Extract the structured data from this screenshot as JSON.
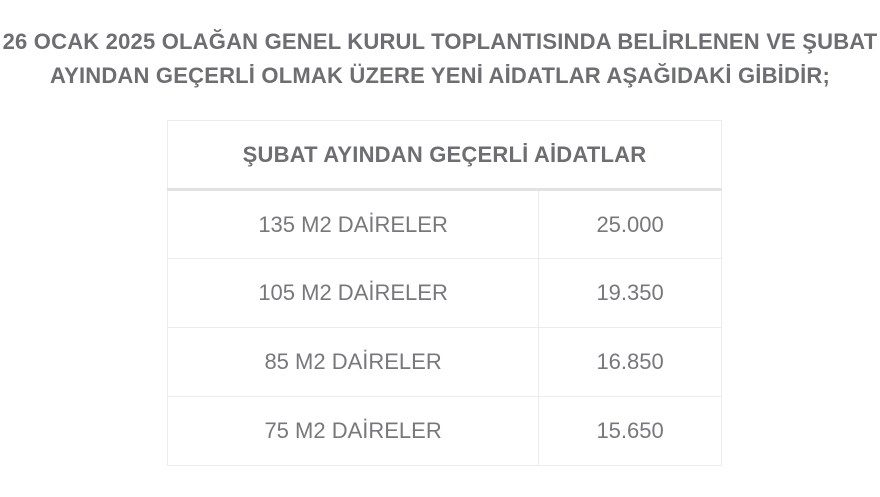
{
  "heading": {
    "line1": "26 OCAK 2025 OLAĞAN GENEL KURUL TOPLANTISINDA BELİRLENEN VE ŞUBAT",
    "line2": "AYINDAN GEÇERLİ OLMAK ÜZERE YENİ AİDATLAR AŞAĞIDAKİ GİBİDİR;",
    "full_text": "26 OCAK 2025 OLAĞAN GENEL KURUL TOPLANTISINDA BELİRLENEN VE ŞUBAT AYINDAN GEÇERLİ OLMAK ÜZERE YENİ AİDATLAR AŞAĞIDAKİ GİBİDİR;"
  },
  "table": {
    "header": "ŞUBAT AYINDAN GEÇERLİ AİDATLAR",
    "rows": [
      {
        "label": "135 M2 DAİRELER",
        "value": "25.000"
      },
      {
        "label": "105 M2 DAİRELER",
        "value": "19.350"
      },
      {
        "label": "85 M2 DAİRELER",
        "value": "16.850"
      },
      {
        "label": "75 M2 DAİRELER",
        "value": "15.650"
      }
    ]
  },
  "colors": {
    "background": "#ffffff",
    "heading_text": "#6d6e71",
    "cell_text": "#77787b",
    "table_border": "#ececec",
    "header_bottom_border": "#e2e2e2"
  }
}
